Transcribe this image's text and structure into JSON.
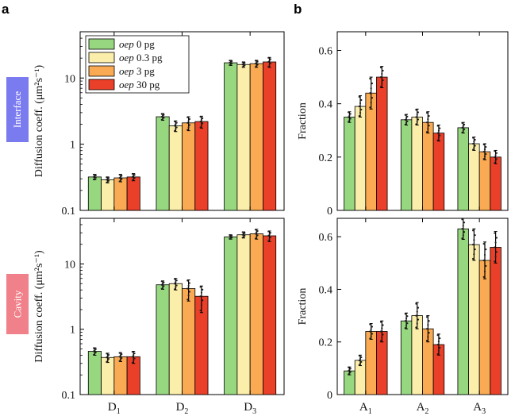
{
  "labels": {
    "panel_a": "a",
    "panel_b": "b",
    "row_top": "Interface",
    "row_bottom": "Cavity"
  },
  "colors": {
    "row_top_bg": "#7b7bf0",
    "row_bottom_bg": "#f0808a"
  },
  "series_colors": [
    "#97d77f",
    "#fbeeaa",
    "#f9aa52",
    "#ea3f28"
  ],
  "legend": [
    {
      "italic": "oep",
      "rest": " 0 pg"
    },
    {
      "italic": "oep",
      "rest": " 0.3 pg"
    },
    {
      "italic": "oep",
      "rest": " 3 pg"
    },
    {
      "italic": "oep",
      "rest": " 30 pg"
    }
  ],
  "chart_data": [
    {
      "type": "bar",
      "panel": "a",
      "row": "Interface",
      "yscale": "log",
      "ylim": [
        0.1,
        50
      ],
      "ylabel": "Diffusion coeff. (μm²s⁻¹)",
      "yticks": [
        0.1,
        1,
        10
      ],
      "ytick_labels": [
        "0.1",
        "1",
        "10"
      ],
      "categories": [
        {
          "base": "D",
          "sub": "1"
        },
        {
          "base": "D",
          "sub": "2"
        },
        {
          "base": "D",
          "sub": "3"
        }
      ],
      "show_xticklabels": false,
      "legend_location": "top-left",
      "series": [
        {
          "values": [
            0.32,
            2.6,
            17.0
          ],
          "err": [
            0.03,
            0.3,
            1.5
          ]
        },
        {
          "values": [
            0.29,
            1.9,
            16.0
          ],
          "err": [
            0.03,
            0.35,
            1.5
          ]
        },
        {
          "values": [
            0.31,
            2.1,
            16.5
          ],
          "err": [
            0.04,
            0.5,
            2.0
          ]
        },
        {
          "values": [
            0.32,
            2.2,
            17.5
          ],
          "err": [
            0.04,
            0.45,
            3.0
          ]
        }
      ]
    },
    {
      "type": "bar",
      "panel": "b",
      "row": "Interface",
      "yscale": "linear",
      "ylim": [
        0,
        0.67
      ],
      "ylabel": "Fraction",
      "yticks": [
        0,
        0.2,
        0.4,
        0.6
      ],
      "ytick_labels": [
        "0",
        "0.2",
        "0.4",
        "0.6"
      ],
      "categories": [
        {
          "base": "A",
          "sub": "1"
        },
        {
          "base": "A",
          "sub": "2"
        },
        {
          "base": "A",
          "sub": "3"
        }
      ],
      "show_xticklabels": false,
      "series": [
        {
          "values": [
            0.35,
            0.34,
            0.31
          ],
          "err": [
            0.02,
            0.02,
            0.02
          ]
        },
        {
          "values": [
            0.39,
            0.35,
            0.25
          ],
          "err": [
            0.04,
            0.03,
            0.025
          ]
        },
        {
          "values": [
            0.44,
            0.33,
            0.22
          ],
          "err": [
            0.06,
            0.04,
            0.03
          ]
        },
        {
          "values": [
            0.5,
            0.29,
            0.2
          ],
          "err": [
            0.04,
            0.03,
            0.025
          ]
        }
      ]
    },
    {
      "type": "bar",
      "panel": "a",
      "row": "Cavity",
      "yscale": "log",
      "ylim": [
        0.1,
        50
      ],
      "ylabel": "Diffusion coeff. (μm²s⁻¹)",
      "yticks": [
        0.1,
        1,
        10
      ],
      "ytick_labels": [
        "0.1",
        "1",
        "10"
      ],
      "categories": [
        {
          "base": "D",
          "sub": "1"
        },
        {
          "base": "D",
          "sub": "2"
        },
        {
          "base": "D",
          "sub": "3"
        }
      ],
      "show_xticklabels": true,
      "series": [
        {
          "values": [
            0.46,
            4.8,
            26.0
          ],
          "err": [
            0.06,
            0.7,
            2.0
          ]
        },
        {
          "values": [
            0.37,
            5.0,
            28.0
          ],
          "err": [
            0.06,
            1.0,
            3.0
          ]
        },
        {
          "values": [
            0.38,
            4.2,
            29.0
          ],
          "err": [
            0.06,
            1.5,
            5.0
          ]
        },
        {
          "values": [
            0.38,
            3.2,
            27.0
          ],
          "err": [
            0.08,
            1.4,
            5.0
          ]
        }
      ]
    },
    {
      "type": "bar",
      "panel": "b",
      "row": "Cavity",
      "yscale": "linear",
      "ylim": [
        0,
        0.67
      ],
      "ylabel": "Fraction",
      "yticks": [
        0,
        0.2,
        0.4,
        0.6
      ],
      "ytick_labels": [
        "0",
        "0.2",
        "0.4",
        "0.6"
      ],
      "categories": [
        {
          "base": "A",
          "sub": "1"
        },
        {
          "base": "A",
          "sub": "2"
        },
        {
          "base": "A",
          "sub": "3"
        }
      ],
      "show_xticklabels": true,
      "series": [
        {
          "values": [
            0.09,
            0.28,
            0.63
          ],
          "err": [
            0.015,
            0.03,
            0.04
          ]
        },
        {
          "values": [
            0.13,
            0.3,
            0.57
          ],
          "err": [
            0.02,
            0.05,
            0.06
          ]
        },
        {
          "values": [
            0.24,
            0.25,
            0.51
          ],
          "err": [
            0.03,
            0.05,
            0.07
          ]
        },
        {
          "values": [
            0.24,
            0.19,
            0.56
          ],
          "err": [
            0.04,
            0.04,
            0.06
          ]
        }
      ]
    }
  ]
}
